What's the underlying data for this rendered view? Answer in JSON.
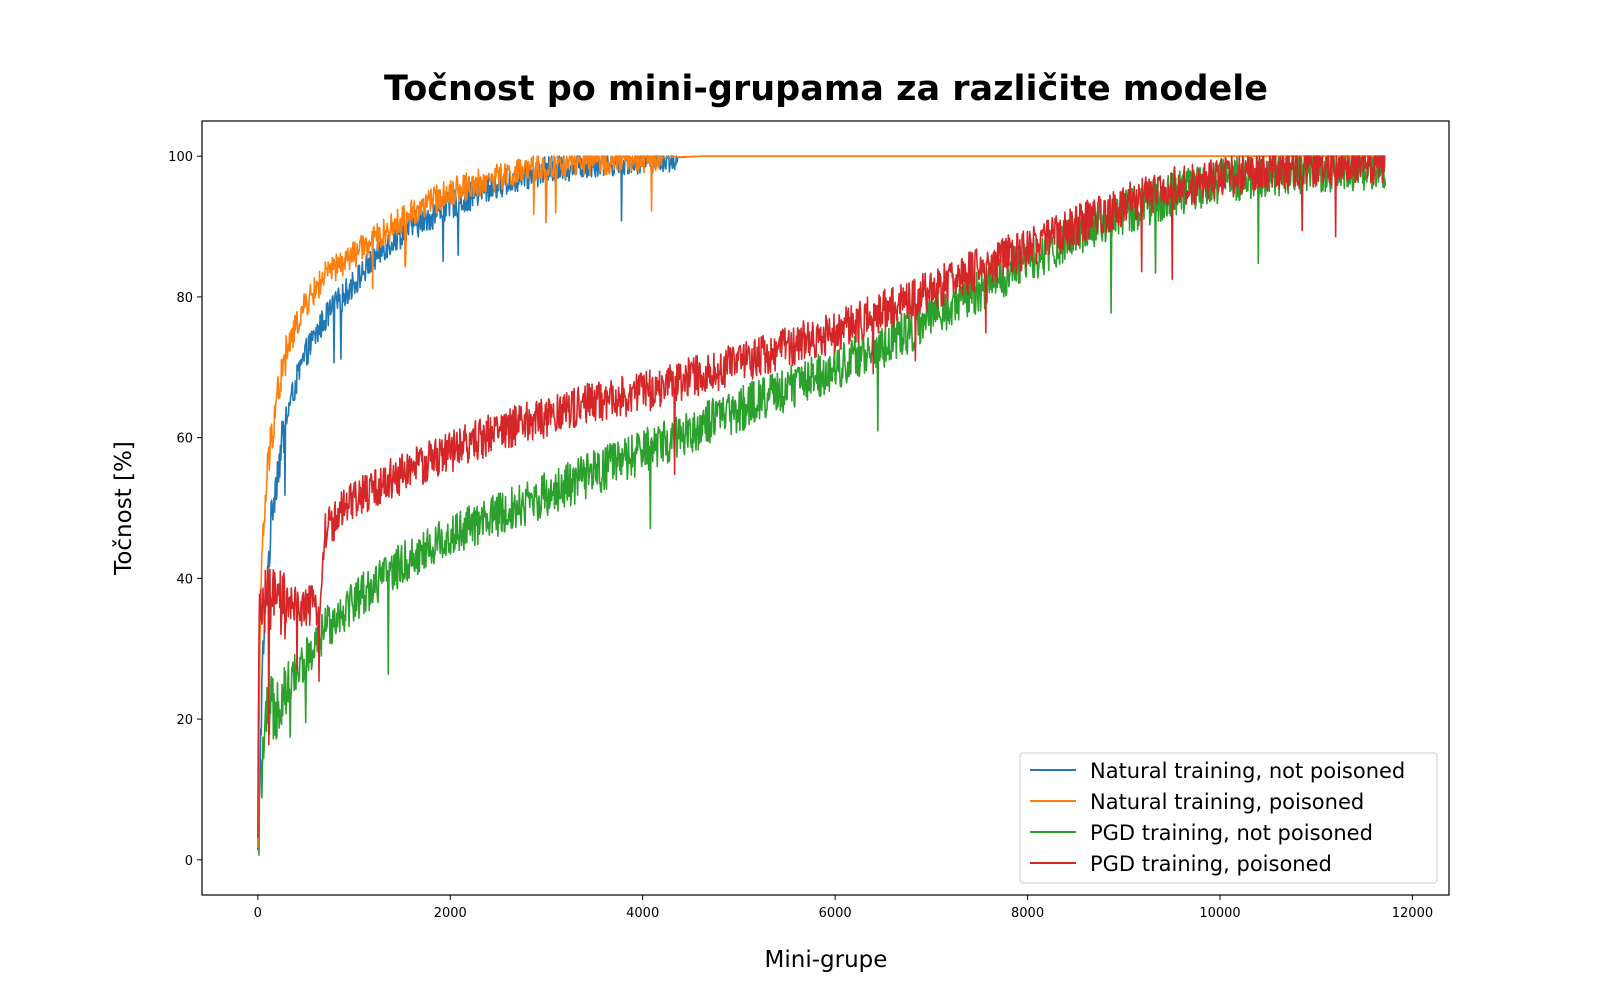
{
  "chart_data": {
    "type": "line",
    "title": "Točnost po mini-grupama za različite modele",
    "xlabel": "Mini-grupe",
    "ylabel": "Točnost [%]",
    "xlim": [
      -580,
      12380
    ],
    "ylim": [
      -5,
      105
    ],
    "x_ticks": [
      0,
      2000,
      4000,
      6000,
      8000,
      10000,
      12000
    ],
    "y_ticks": [
      0,
      20,
      40,
      60,
      80,
      100
    ],
    "grid": false,
    "legend_position": "bottom-right",
    "x_max": 11720,
    "series": [
      {
        "name": "Natural training, not poisoned",
        "color": "#1f77b4",
        "noise": 2.0,
        "points": [
          [
            0,
            0
          ],
          [
            20,
            12
          ],
          [
            50,
            28
          ],
          [
            100,
            40
          ],
          [
            150,
            50
          ],
          [
            200,
            55
          ],
          [
            300,
            63
          ],
          [
            400,
            68
          ],
          [
            500,
            72
          ],
          [
            700,
            77
          ],
          [
            1000,
            82
          ],
          [
            1300,
            87
          ],
          [
            1600,
            90
          ],
          [
            2000,
            93
          ],
          [
            2500,
            96
          ],
          [
            3000,
            98
          ],
          [
            3500,
            99
          ],
          [
            4000,
            99.5
          ],
          [
            4600,
            100
          ],
          [
            11720,
            100
          ]
        ]
      },
      {
        "name": "Natural training, poisoned",
        "color": "#ff7f0e",
        "noise": 2.0,
        "points": [
          [
            0,
            0
          ],
          [
            20,
            30
          ],
          [
            50,
            45
          ],
          [
            100,
            55
          ],
          [
            150,
            61
          ],
          [
            200,
            66
          ],
          [
            300,
            72
          ],
          [
            400,
            76
          ],
          [
            500,
            79
          ],
          [
            700,
            83
          ],
          [
            1000,
            86
          ],
          [
            1300,
            89
          ],
          [
            1600,
            92
          ],
          [
            2000,
            95
          ],
          [
            2500,
            97
          ],
          [
            3000,
            98.5
          ],
          [
            3500,
            99.3
          ],
          [
            4000,
            99.7
          ],
          [
            4600,
            100
          ],
          [
            11720,
            100
          ]
        ]
      },
      {
        "name": "PGD training, not poisoned",
        "color": "#2ca02c",
        "noise": 3.2,
        "points": [
          [
            0,
            0
          ],
          [
            30,
            12
          ],
          [
            100,
            20
          ],
          [
            300,
            25
          ],
          [
            600,
            30
          ],
          [
            700,
            33
          ],
          [
            1000,
            37
          ],
          [
            1500,
            42
          ],
          [
            2000,
            46
          ],
          [
            2500,
            49
          ],
          [
            3000,
            52
          ],
          [
            3500,
            55
          ],
          [
            4000,
            58
          ],
          [
            4500,
            61
          ],
          [
            5000,
            64
          ],
          [
            5500,
            67
          ],
          [
            6000,
            70
          ],
          [
            6500,
            73
          ],
          [
            7000,
            77
          ],
          [
            7500,
            81
          ],
          [
            8000,
            85
          ],
          [
            8500,
            89
          ],
          [
            9000,
            92
          ],
          [
            9500,
            94.5
          ],
          [
            10000,
            96.5
          ],
          [
            10500,
            97.5
          ],
          [
            11000,
            98
          ],
          [
            11720,
            98.5
          ]
        ]
      },
      {
        "name": "PGD training, poisoned",
        "color": "#d62728",
        "noise": 3.0,
        "points": [
          [
            0,
            0
          ],
          [
            15,
            36
          ],
          [
            100,
            37
          ],
          [
            300,
            36
          ],
          [
            500,
            36
          ],
          [
            650,
            36
          ],
          [
            700,
            47
          ],
          [
            1000,
            51
          ],
          [
            1500,
            55
          ],
          [
            2000,
            58
          ],
          [
            2500,
            61
          ],
          [
            3000,
            63
          ],
          [
            3500,
            65
          ],
          [
            4000,
            66.5
          ],
          [
            4500,
            68.5
          ],
          [
            5000,
            70.5
          ],
          [
            5500,
            73
          ],
          [
            6000,
            75
          ],
          [
            6500,
            78
          ],
          [
            7000,
            81
          ],
          [
            7500,
            84
          ],
          [
            8000,
            87
          ],
          [
            8500,
            90
          ],
          [
            9000,
            93
          ],
          [
            9500,
            95.5
          ],
          [
            10000,
            97
          ],
          [
            10500,
            98
          ],
          [
            11000,
            98.5
          ],
          [
            11720,
            99
          ]
        ]
      }
    ]
  }
}
